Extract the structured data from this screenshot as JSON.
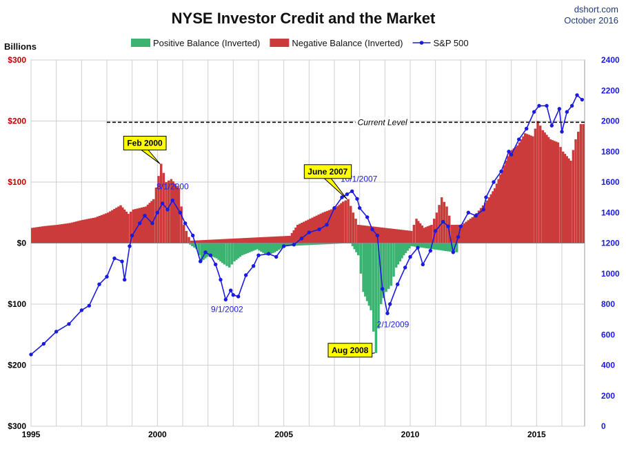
{
  "source": {
    "site": "dshort.com",
    "date": "October 2016"
  },
  "chart_data": {
    "type": "bar",
    "title": "NYSE Investor Credit and the Market",
    "ylabel_left": "Billions",
    "ylim_left": [
      -300,
      300
    ],
    "ylim_right": [
      0,
      2400
    ],
    "xlim": [
      1995,
      2016.9
    ],
    "left_ticks": [
      {
        "v": 300,
        "label": "$300",
        "color": "#c00000"
      },
      {
        "v": 200,
        "label": "$200",
        "color": "#c00000"
      },
      {
        "v": 100,
        "label": "$100",
        "color": "#c00000"
      },
      {
        "v": 0,
        "label": "$0",
        "color": "#000000"
      },
      {
        "v": -100,
        "label": "$100",
        "color": "#000000"
      },
      {
        "v": -200,
        "label": "$200",
        "color": "#000000"
      },
      {
        "v": -300,
        "label": "$300",
        "color": "#000000"
      }
    ],
    "right_ticks": [
      0,
      200,
      400,
      600,
      800,
      1000,
      1200,
      1400,
      1600,
      1800,
      2000,
      2200,
      2400
    ],
    "x_ticks": [
      {
        "v": 1995,
        "label": "1995"
      },
      {
        "v": 2000,
        "label": "2000"
      },
      {
        "v": 2005,
        "label": "2005"
      },
      {
        "v": 2010,
        "label": "2010"
      },
      {
        "v": 2015,
        "label": "2015"
      }
    ],
    "x_gridlines": [
      1995,
      1996,
      1997,
      1998,
      1999,
      2000,
      2001,
      2002,
      2003,
      2004,
      2005,
      2006,
      2007,
      2008,
      2009,
      2010,
      2011,
      2012,
      2013,
      2014,
      2015,
      2016
    ],
    "grid": true,
    "legend_position": "top",
    "series": [
      {
        "name": "Positive Balance (Inverted)",
        "color": "#3cb371",
        "kind": "bar",
        "points": [
          [
            2001.0,
            5
          ],
          [
            2001.5,
            -10
          ],
          [
            2001.7,
            -30
          ],
          [
            2002.0,
            -20
          ],
          [
            2002.3,
            -25
          ],
          [
            2002.6,
            -35
          ],
          [
            2002.8,
            -40
          ],
          [
            2003.0,
            -30
          ],
          [
            2003.3,
            -20
          ],
          [
            2003.6,
            -15
          ],
          [
            2003.9,
            -10
          ],
          [
            2004.3,
            -20
          ],
          [
            2004.6,
            -15
          ],
          [
            2005.0,
            -5
          ],
          [
            2007.6,
            0
          ],
          [
            2007.9,
            -20
          ],
          [
            2008.1,
            -80
          ],
          [
            2008.4,
            -110
          ],
          [
            2008.6,
            -180
          ],
          [
            2008.8,
            -100
          ],
          [
            2009.0,
            -80
          ],
          [
            2009.2,
            -70
          ],
          [
            2009.4,
            -40
          ],
          [
            2009.7,
            -20
          ],
          [
            2010.0,
            -5
          ],
          [
            2011.7,
            -15
          ]
        ]
      },
      {
        "name": "Negative Balance (Inverted)",
        "color": "#cc3b3b",
        "kind": "bar",
        "points": [
          [
            1995.0,
            25
          ],
          [
            1995.5,
            28
          ],
          [
            1996.0,
            30
          ],
          [
            1996.5,
            33
          ],
          [
            1997.0,
            38
          ],
          [
            1997.5,
            42
          ],
          [
            1998.0,
            50
          ],
          [
            1998.5,
            62
          ],
          [
            1998.8,
            48
          ],
          [
            1999.0,
            55
          ],
          [
            1999.5,
            60
          ],
          [
            1999.8,
            72
          ],
          [
            2000.0,
            110
          ],
          [
            2000.1,
            130
          ],
          [
            2000.3,
            100
          ],
          [
            2000.5,
            105
          ],
          [
            2000.8,
            90
          ],
          [
            2001.0,
            30
          ],
          [
            2001.2,
            10
          ],
          [
            2001.3,
            4
          ],
          [
            2005.2,
            12
          ],
          [
            2005.5,
            30
          ],
          [
            2006.0,
            40
          ],
          [
            2006.5,
            50
          ],
          [
            2007.0,
            58
          ],
          [
            2007.3,
            68
          ],
          [
            2007.5,
            72
          ],
          [
            2007.7,
            50
          ],
          [
            2007.9,
            30
          ],
          [
            2010.0,
            20
          ],
          [
            2010.2,
            40
          ],
          [
            2010.5,
            25
          ],
          [
            2010.8,
            30
          ],
          [
            2011.0,
            50
          ],
          [
            2011.2,
            75
          ],
          [
            2011.4,
            60
          ],
          [
            2011.6,
            30
          ],
          [
            2012.0,
            30
          ],
          [
            2012.5,
            45
          ],
          [
            2013.0,
            70
          ],
          [
            2013.3,
            90
          ],
          [
            2013.6,
            120
          ],
          [
            2013.9,
            150
          ],
          [
            2014.2,
            160
          ],
          [
            2014.5,
            180
          ],
          [
            2014.8,
            175
          ],
          [
            2015.0,
            200
          ],
          [
            2015.2,
            185
          ],
          [
            2015.5,
            170
          ],
          [
            2015.8,
            165
          ],
          [
            2016.0,
            150
          ],
          [
            2016.3,
            135
          ],
          [
            2016.5,
            170
          ],
          [
            2016.7,
            195
          ]
        ]
      },
      {
        "name": "S&P 500",
        "color": "#1a1ae0",
        "kind": "line",
        "points": [
          [
            1995.0,
            470
          ],
          [
            1995.5,
            540
          ],
          [
            1996.0,
            620
          ],
          [
            1996.5,
            670
          ],
          [
            1997.0,
            760
          ],
          [
            1997.3,
            790
          ],
          [
            1997.7,
            930
          ],
          [
            1998.0,
            980
          ],
          [
            1998.3,
            1100
          ],
          [
            1998.6,
            1080
          ],
          [
            1998.7,
            960
          ],
          [
            1998.9,
            1180
          ],
          [
            1999.0,
            1250
          ],
          [
            1999.3,
            1330
          ],
          [
            1999.5,
            1380
          ],
          [
            1999.8,
            1330
          ],
          [
            2000.0,
            1400
          ],
          [
            2000.2,
            1460
          ],
          [
            2000.4,
            1420
          ],
          [
            2000.6,
            1480
          ],
          [
            2000.9,
            1400
          ],
          [
            2001.1,
            1330
          ],
          [
            2001.4,
            1250
          ],
          [
            2001.7,
            1080
          ],
          [
            2001.9,
            1140
          ],
          [
            2002.1,
            1120
          ],
          [
            2002.3,
            1060
          ],
          [
            2002.5,
            960
          ],
          [
            2002.7,
            830
          ],
          [
            2002.9,
            890
          ],
          [
            2003.0,
            860
          ],
          [
            2003.2,
            850
          ],
          [
            2003.5,
            990
          ],
          [
            2003.8,
            1050
          ],
          [
            2004.0,
            1120
          ],
          [
            2004.4,
            1130
          ],
          [
            2004.7,
            1110
          ],
          [
            2005.0,
            1180
          ],
          [
            2005.4,
            1190
          ],
          [
            2005.7,
            1230
          ],
          [
            2006.0,
            1270
          ],
          [
            2006.4,
            1290
          ],
          [
            2006.7,
            1320
          ],
          [
            2007.0,
            1430
          ],
          [
            2007.3,
            1500
          ],
          [
            2007.5,
            1520
          ],
          [
            2007.7,
            1540
          ],
          [
            2007.9,
            1490
          ],
          [
            2008.0,
            1430
          ],
          [
            2008.3,
            1370
          ],
          [
            2008.5,
            1290
          ],
          [
            2008.7,
            1250
          ],
          [
            2008.9,
            900
          ],
          [
            2009.1,
            740
          ],
          [
            2009.2,
            800
          ],
          [
            2009.5,
            930
          ],
          [
            2009.8,
            1040
          ],
          [
            2010.0,
            1110
          ],
          [
            2010.3,
            1170
          ],
          [
            2010.5,
            1060
          ],
          [
            2010.8,
            1150
          ],
          [
            2011.0,
            1280
          ],
          [
            2011.3,
            1340
          ],
          [
            2011.5,
            1310
          ],
          [
            2011.7,
            1140
          ],
          [
            2011.9,
            1240
          ],
          [
            2012.0,
            1310
          ],
          [
            2012.3,
            1400
          ],
          [
            2012.6,
            1380
          ],
          [
            2012.9,
            1420
          ],
          [
            2013.0,
            1500
          ],
          [
            2013.3,
            1600
          ],
          [
            2013.6,
            1670
          ],
          [
            2013.9,
            1800
          ],
          [
            2014.0,
            1780
          ],
          [
            2014.3,
            1880
          ],
          [
            2014.6,
            1950
          ],
          [
            2014.9,
            2060
          ],
          [
            2015.1,
            2100
          ],
          [
            2015.4,
            2100
          ],
          [
            2015.6,
            1970
          ],
          [
            2015.9,
            2080
          ],
          [
            2016.0,
            1930
          ],
          [
            2016.2,
            2060
          ],
          [
            2016.4,
            2100
          ],
          [
            2016.6,
            2170
          ],
          [
            2016.8,
            2140
          ]
        ]
      }
    ],
    "reference_line": {
      "label": "Current Level",
      "value": 198,
      "from_x": 1998.0
    },
    "callouts": [
      {
        "text": "Feb 2000",
        "x": 2000.1,
        "y": 130
      },
      {
        "text": "June 2007",
        "x": 2007.5,
        "y": 72
      },
      {
        "text": "Aug 2008",
        "x": 2008.6,
        "y": -180
      }
    ],
    "date_labels": [
      {
        "text": "8/1/2000",
        "x": 2000.6,
        "y": 1480
      },
      {
        "text": "9/1/2002",
        "x": 2002.7,
        "y": 830
      },
      {
        "text": "10/1/2007",
        "x": 2007.7,
        "y": 1540
      },
      {
        "text": "2/1/2009",
        "x": 2009.1,
        "y": 740
      }
    ]
  }
}
